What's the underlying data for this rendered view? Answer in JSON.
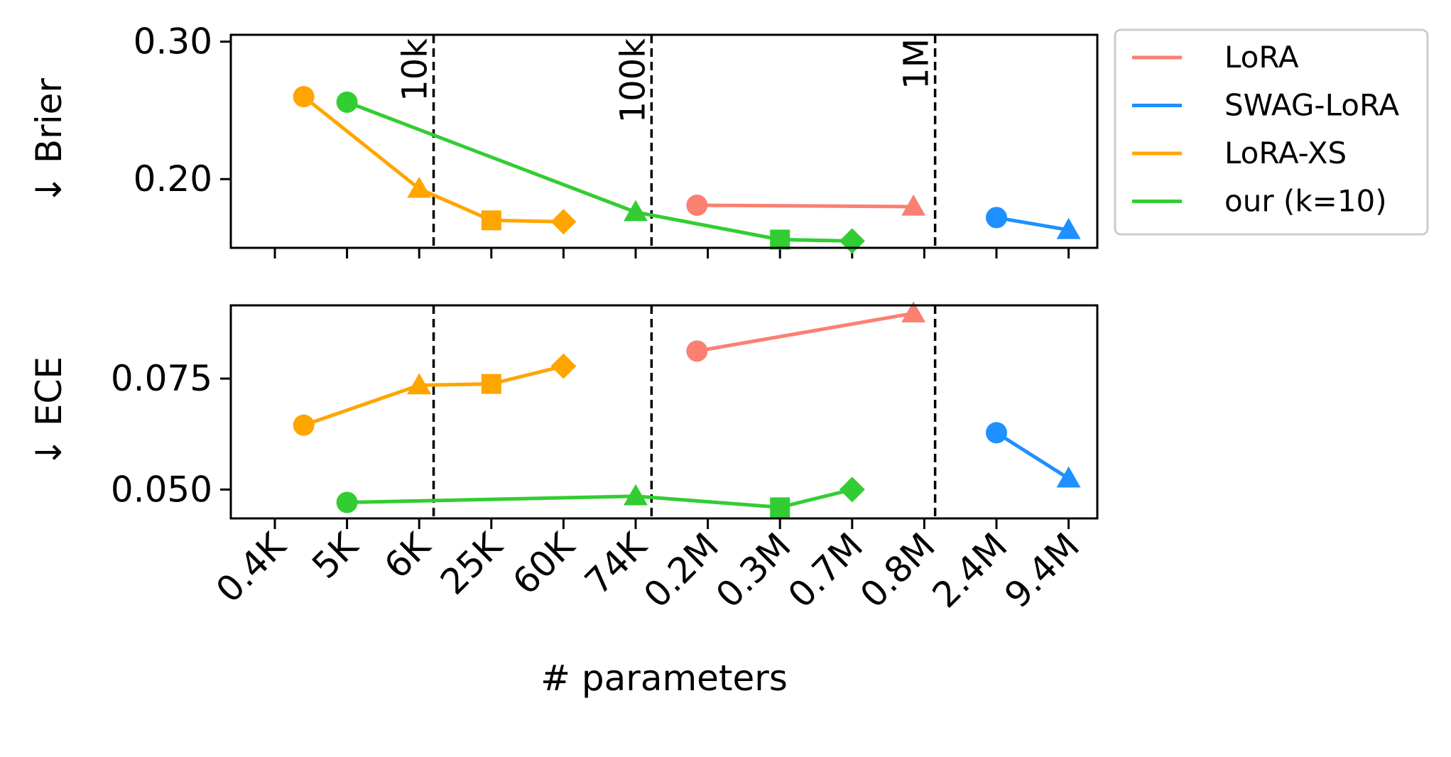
{
  "chart_data": {
    "type": "line",
    "xlabel": "# parameters",
    "x_tick_labels": [
      "0.4K",
      "5K",
      "6K",
      "25K",
      "60K",
      "74K",
      "0.2M",
      "0.3M",
      "0.7M",
      "0.8M",
      "2.4M",
      "9.4M"
    ],
    "reference_lines": [
      {
        "label": "10k",
        "x_position": 2.2
      },
      {
        "label": "100k",
        "x_position": 5.22
      },
      {
        "label": "1M",
        "x_position": 9.15
      }
    ],
    "legend": {
      "placement": "outside-right-top",
      "entries": [
        {
          "label": "LoRA",
          "color": "#fa8072"
        },
        {
          "label": "SWAG-LoRA",
          "color": "#1e90ff"
        },
        {
          "label": "LoRA-XS",
          "color": "#ffa500"
        },
        {
          "label": "our (k=10)",
          "color": "#32cd32"
        }
      ]
    },
    "panels": [
      {
        "ylabel": "↓ Brier",
        "ylim": [
          0.15,
          0.305
        ],
        "yticks": [
          {
            "value": 0.3,
            "label": "0.30"
          },
          {
            "value": 0.2,
            "label": "0.20"
          }
        ],
        "series": [
          {
            "name": "LoRA-XS",
            "color": "#ffa500",
            "points": [
              {
                "x": 0.4,
                "y": 0.26,
                "marker": "circle"
              },
              {
                "x": 2.0,
                "y": 0.193,
                "marker": "triangle"
              },
              {
                "x": 3.0,
                "y": 0.17,
                "marker": "square"
              },
              {
                "x": 4.0,
                "y": 0.169,
                "marker": "diamond"
              }
            ]
          },
          {
            "name": "our (k=10)",
            "color": "#32cd32",
            "points": [
              {
                "x": 1.0,
                "y": 0.256,
                "marker": "circle"
              },
              {
                "x": 5.0,
                "y": 0.176,
                "marker": "triangle"
              },
              {
                "x": 7.0,
                "y": 0.156,
                "marker": "square"
              },
              {
                "x": 8.0,
                "y": 0.155,
                "marker": "diamond"
              }
            ]
          },
          {
            "name": "LoRA",
            "color": "#fa8072",
            "points": [
              {
                "x": 5.85,
                "y": 0.181,
                "marker": "circle"
              },
              {
                "x": 8.85,
                "y": 0.18,
                "marker": "triangle"
              }
            ]
          },
          {
            "name": "SWAG-LoRA",
            "color": "#1e90ff",
            "points": [
              {
                "x": 10.0,
                "y": 0.172,
                "marker": "circle"
              },
              {
                "x": 11.0,
                "y": 0.163,
                "marker": "triangle"
              }
            ]
          }
        ]
      },
      {
        "ylabel": "↓ ECE",
        "ylim": [
          0.0435,
          0.0915
        ],
        "yticks": [
          {
            "value": 0.075,
            "label": "0.075"
          },
          {
            "value": 0.05,
            "label": "0.050"
          }
        ],
        "series": [
          {
            "name": "LoRA-XS",
            "color": "#ffa500",
            "points": [
              {
                "x": 0.4,
                "y": 0.0645,
                "marker": "circle"
              },
              {
                "x": 2.0,
                "y": 0.0735,
                "marker": "triangle"
              },
              {
                "x": 3.0,
                "y": 0.0738,
                "marker": "square"
              },
              {
                "x": 4.0,
                "y": 0.0778,
                "marker": "diamond"
              }
            ]
          },
          {
            "name": "our (k=10)",
            "color": "#32cd32",
            "points": [
              {
                "x": 1.0,
                "y": 0.0471,
                "marker": "circle"
              },
              {
                "x": 5.0,
                "y": 0.0485,
                "marker": "triangle"
              },
              {
                "x": 7.0,
                "y": 0.046,
                "marker": "square"
              },
              {
                "x": 8.0,
                "y": 0.05,
                "marker": "diamond"
              }
            ]
          },
          {
            "name": "LoRA",
            "color": "#fa8072",
            "points": [
              {
                "x": 5.85,
                "y": 0.0812,
                "marker": "circle"
              },
              {
                "x": 8.85,
                "y": 0.0897,
                "marker": "triangle"
              }
            ]
          },
          {
            "name": "SWAG-LoRA",
            "color": "#1e90ff",
            "points": [
              {
                "x": 10.0,
                "y": 0.0628,
                "marker": "circle"
              },
              {
                "x": 11.0,
                "y": 0.0525,
                "marker": "triangle"
              }
            ]
          }
        ]
      }
    ]
  }
}
